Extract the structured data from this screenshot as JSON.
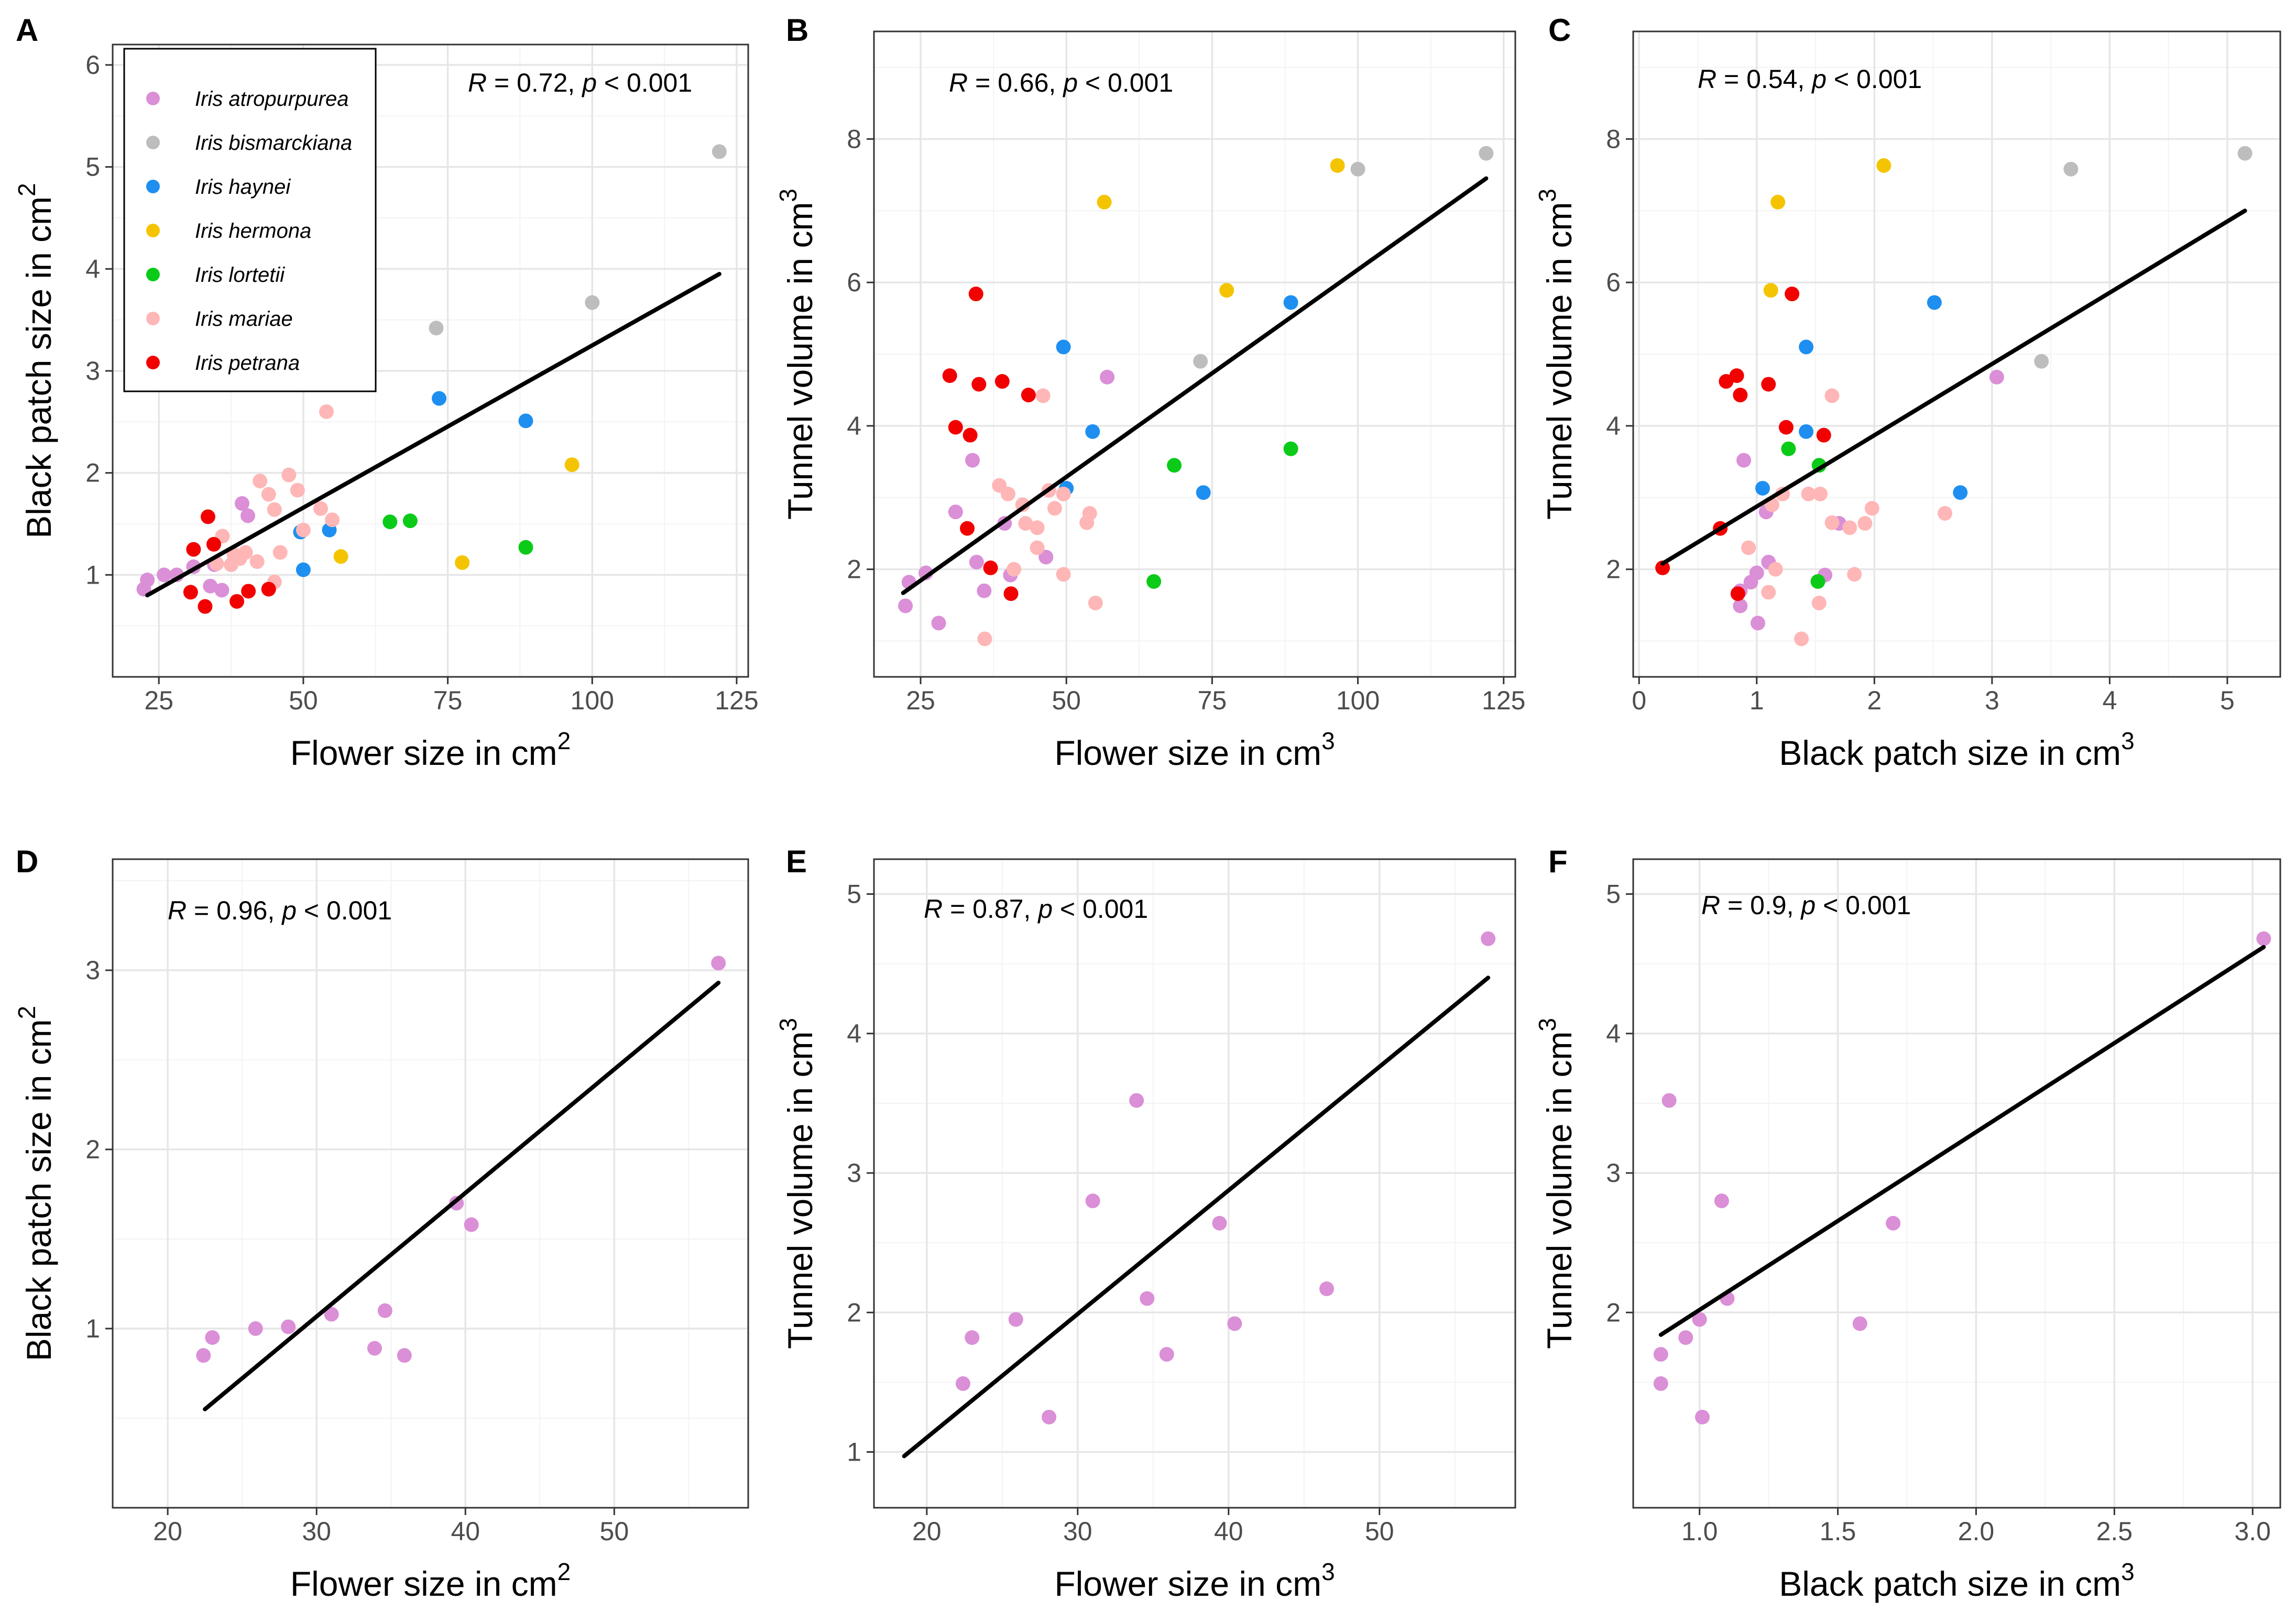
{
  "species": [
    {
      "key": "atro",
      "name": "Iris atropurpurea",
      "color": "#DA8FD7"
    },
    {
      "key": "bism",
      "name": "Iris bismarckiana",
      "color": "#BDBDBD"
    },
    {
      "key": "hayn",
      "name": "Iris haynei",
      "color": "#1E8FF0"
    },
    {
      "key": "herm",
      "name": "Iris hermona",
      "color": "#F5C400"
    },
    {
      "key": "lort",
      "name": "Iris lortetii",
      "color": "#0BCB18"
    },
    {
      "key": "mari",
      "name": "Iris mariae",
      "color": "#FFB6B6"
    },
    {
      "key": "petr",
      "name": "Iris petrana",
      "color": "#F20000"
    }
  ],
  "legend_title": "",
  "chart_data": [
    {
      "panel": "A",
      "type": "scatter",
      "xlabel": "Flower size in cm",
      "ylabel": "Black patch size in cm",
      "exp": "2",
      "xlim": [
        17,
        127
      ],
      "ylim": [
        0,
        6.2
      ],
      "xticks": [
        25,
        50,
        75,
        100,
        125
      ],
      "yticks": [
        1,
        2,
        3,
        4,
        5,
        6
      ],
      "r_text": "R",
      "stat_text": " = 0.72, ",
      "p_text": "p",
      "p_rest": " < 0.001",
      "fit": {
        "x1": 23,
        "y1": 0.8,
        "x2": 122,
        "y2": 3.95
      },
      "legend": true,
      "points": [
        [
          "atro",
          22.4,
          0.86
        ],
        [
          "atro",
          23,
          0.95
        ],
        [
          "atro",
          25.9,
          1.0
        ],
        [
          "atro",
          28.1,
          1.0
        ],
        [
          "atro",
          31,
          1.08
        ],
        [
          "atro",
          33.9,
          0.89
        ],
        [
          "atro",
          34.6,
          1.1
        ],
        [
          "atro",
          35.9,
          0.85
        ],
        [
          "atro",
          39.4,
          1.7
        ],
        [
          "atro",
          40.4,
          1.58
        ],
        [
          "bism",
          73,
          3.42
        ],
        [
          "bism",
          100,
          3.67
        ],
        [
          "bism",
          122,
          5.15
        ],
        [
          "hayn",
          49.5,
          1.42
        ],
        [
          "hayn",
          50,
          1.05
        ],
        [
          "hayn",
          54.5,
          1.44
        ],
        [
          "hayn",
          73.5,
          2.73
        ],
        [
          "hayn",
          88.5,
          2.51
        ],
        [
          "herm",
          56.5,
          1.18
        ],
        [
          "herm",
          77.5,
          1.12
        ],
        [
          "herm",
          96.5,
          2.08
        ],
        [
          "lort",
          65,
          1.52
        ],
        [
          "lort",
          68.5,
          1.53
        ],
        [
          "lort",
          88.5,
          1.27
        ],
        [
          "mari",
          35,
          1.11
        ],
        [
          "mari",
          36,
          1.38
        ],
        [
          "mari",
          37.5,
          1.1
        ],
        [
          "mari",
          38,
          1.2
        ],
        [
          "mari",
          39,
          1.16
        ],
        [
          "mari",
          40,
          1.22
        ],
        [
          "mari",
          42,
          1.13
        ],
        [
          "mari",
          42.5,
          1.92
        ],
        [
          "mari",
          44,
          1.79
        ],
        [
          "mari",
          45,
          0.93
        ],
        [
          "mari",
          45,
          1.64
        ],
        [
          "mari",
          46,
          1.22
        ],
        [
          "mari",
          47.5,
          1.98
        ],
        [
          "mari",
          49,
          1.83
        ],
        [
          "mari",
          50,
          1.44
        ],
        [
          "mari",
          53,
          1.65
        ],
        [
          "mari",
          54,
          2.6
        ],
        [
          "mari",
          55,
          1.54
        ],
        [
          "petr",
          30.5,
          0.83
        ],
        [
          "petr",
          31,
          1.25
        ],
        [
          "petr",
          33,
          0.69
        ],
        [
          "petr",
          33.5,
          1.57
        ],
        [
          "petr",
          34.5,
          1.3
        ],
        [
          "petr",
          38.5,
          0.74
        ],
        [
          "petr",
          40.5,
          0.84
        ],
        [
          "petr",
          44,
          0.86
        ]
      ]
    },
    {
      "panel": "B",
      "type": "scatter",
      "xlabel": "Flower size in cm",
      "ylabel": "Tunnel volume in cm",
      "exp": "3",
      "xlim": [
        17,
        127
      ],
      "ylim": [
        0.5,
        9.5
      ],
      "xticks": [
        25,
        50,
        75,
        100,
        125
      ],
      "yticks": [
        2,
        4,
        6,
        8
      ],
      "r_text": "R",
      "stat_text": " = 0.66, ",
      "p_text": "p",
      "p_rest": " < 0.001",
      "fit": {
        "x1": 22,
        "y1": 1.67,
        "x2": 122,
        "y2": 7.45
      },
      "legend": false,
      "points": [
        [
          "atro",
          22.4,
          1.49
        ],
        [
          "atro",
          23,
          1.82
        ],
        [
          "atro",
          25.9,
          1.95
        ],
        [
          "atro",
          28.1,
          1.25
        ],
        [
          "atro",
          31,
          2.8
        ],
        [
          "atro",
          33.9,
          3.52
        ],
        [
          "atro",
          34.6,
          2.1
        ],
        [
          "atro",
          35.9,
          1.7
        ],
        [
          "atro",
          39.4,
          2.64
        ],
        [
          "atro",
          40.4,
          1.92
        ],
        [
          "atro",
          46.5,
          2.17
        ],
        [
          "atro",
          57,
          4.68
        ],
        [
          "bism",
          73,
          4.9
        ],
        [
          "bism",
          100,
          7.58
        ],
        [
          "bism",
          122,
          7.8
        ],
        [
          "hayn",
          49.5,
          5.1
        ],
        [
          "hayn",
          50,
          3.13
        ],
        [
          "hayn",
          54.5,
          3.92
        ],
        [
          "hayn",
          73.5,
          3.07
        ],
        [
          "hayn",
          88.5,
          5.72
        ],
        [
          "herm",
          56.5,
          7.12
        ],
        [
          "herm",
          77.5,
          5.89
        ],
        [
          "herm",
          96.5,
          7.63
        ],
        [
          "lort",
          65,
          1.83
        ],
        [
          "lort",
          68.5,
          3.45
        ],
        [
          "lort",
          88.5,
          3.68
        ],
        [
          "mari",
          36,
          1.03
        ],
        [
          "mari",
          38.5,
          3.17
        ],
        [
          "mari",
          40,
          3.05
        ],
        [
          "mari",
          41,
          2.0
        ],
        [
          "mari",
          42.5,
          2.9
        ],
        [
          "mari",
          43,
          2.64
        ],
        [
          "mari",
          45,
          2.58
        ],
        [
          "mari",
          45,
          2.3
        ],
        [
          "mari",
          46,
          4.42
        ],
        [
          "mari",
          47,
          3.1
        ],
        [
          "mari",
          48,
          2.85
        ],
        [
          "mari",
          49.5,
          3.05
        ],
        [
          "mari",
          49.5,
          1.93
        ],
        [
          "mari",
          53.5,
          2.65
        ],
        [
          "mari",
          54,
          2.78
        ],
        [
          "mari",
          55,
          1.53
        ],
        [
          "petr",
          30,
          4.7
        ],
        [
          "petr",
          31,
          3.98
        ],
        [
          "petr",
          33,
          2.57
        ],
        [
          "petr",
          33.5,
          3.87
        ],
        [
          "petr",
          34.5,
          5.84
        ],
        [
          "petr",
          35,
          4.58
        ],
        [
          "petr",
          37,
          2.02
        ],
        [
          "petr",
          39,
          4.62
        ],
        [
          "petr",
          40.5,
          1.66
        ],
        [
          "petr",
          43.5,
          4.43
        ]
      ]
    },
    {
      "panel": "C",
      "type": "scatter",
      "xlabel": "Black patch size in cm",
      "ylabel": "Tunnel volume in cm",
      "exp": "3",
      "xlim": [
        -0.05,
        5.45
      ],
      "ylim": [
        0.5,
        9.5
      ],
      "xticks": [
        0,
        1,
        2,
        3,
        4,
        5
      ],
      "yticks": [
        2,
        4,
        6,
        8
      ],
      "r_text": "R",
      "stat_text": " = 0.54, ",
      "p_text": "p",
      "p_rest": " < 0.001",
      "fit": {
        "x1": 0.2,
        "y1": 2.08,
        "x2": 5.15,
        "y2": 7.0
      },
      "legend": false,
      "points": [
        [
          "atro",
          0.86,
          1.49
        ],
        [
          "atro",
          0.86,
          1.7
        ],
        [
          "atro",
          0.89,
          3.52
        ],
        [
          "atro",
          0.95,
          1.82
        ],
        [
          "atro",
          1.0,
          1.95
        ],
        [
          "atro",
          1.01,
          1.25
        ],
        [
          "atro",
          1.08,
          2.8
        ],
        [
          "atro",
          1.1,
          2.1
        ],
        [
          "atro",
          1.58,
          1.92
        ],
        [
          "atro",
          1.7,
          2.64
        ],
        [
          "atro",
          3.04,
          4.68
        ],
        [
          "bism",
          3.42,
          4.9
        ],
        [
          "bism",
          3.67,
          7.58
        ],
        [
          "bism",
          5.15,
          7.8
        ],
        [
          "hayn",
          1.05,
          3.13
        ],
        [
          "hayn",
          1.42,
          5.1
        ],
        [
          "hayn",
          1.42,
          3.92
        ],
        [
          "hayn",
          2.51,
          5.72
        ],
        [
          "hayn",
          2.73,
          3.07
        ],
        [
          "herm",
          1.12,
          5.89
        ],
        [
          "herm",
          1.18,
          7.12
        ],
        [
          "herm",
          2.08,
          7.63
        ],
        [
          "lort",
          1.27,
          3.68
        ],
        [
          "lort",
          1.52,
          1.83
        ],
        [
          "lort",
          1.53,
          3.45
        ],
        [
          "mari",
          0.93,
          2.3
        ],
        [
          "mari",
          1.1,
          1.68
        ],
        [
          "mari",
          1.13,
          2.9
        ],
        [
          "mari",
          1.16,
          2.0
        ],
        [
          "mari",
          1.22,
          3.05
        ],
        [
          "mari",
          1.38,
          1.03
        ],
        [
          "mari",
          1.44,
          3.05
        ],
        [
          "mari",
          1.53,
          1.53
        ],
        [
          "mari",
          1.54,
          3.05
        ],
        [
          "mari",
          1.64,
          4.42
        ],
        [
          "mari",
          1.64,
          2.65
        ],
        [
          "mari",
          1.79,
          2.58
        ],
        [
          "mari",
          1.83,
          1.93
        ],
        [
          "mari",
          1.92,
          2.64
        ],
        [
          "mari",
          1.98,
          2.85
        ],
        [
          "mari",
          2.6,
          2.78
        ],
        [
          "petr",
          0.2,
          2.02
        ],
        [
          "petr",
          0.69,
          2.57
        ],
        [
          "petr",
          0.74,
          4.62
        ],
        [
          "petr",
          0.83,
          4.7
        ],
        [
          "petr",
          0.84,
          1.66
        ],
        [
          "petr",
          0.86,
          4.43
        ],
        [
          "petr",
          1.25,
          3.98
        ],
        [
          "petr",
          1.3,
          5.84
        ],
        [
          "petr",
          1.57,
          3.87
        ],
        [
          "petr",
          1.1,
          4.58
        ]
      ]
    },
    {
      "panel": "D",
      "type": "scatter",
      "xlabel": "Flower size in cm",
      "ylabel": "Black patch size in cm",
      "exp": "2",
      "xlim": [
        16.3,
        59
      ],
      "ylim": [
        0,
        3.62
      ],
      "xticks": [
        20,
        30,
        40,
        50
      ],
      "yticks": [
        1,
        2,
        3
      ],
      "r_text": "R",
      "stat_text": " = 0.96, ",
      "p_text": "p",
      "p_rest": " < 0.001",
      "fit": {
        "x1": 22.5,
        "y1": 0.55,
        "x2": 57,
        "y2": 2.93
      },
      "legend": false,
      "points": [
        [
          "atro",
          22.4,
          0.85
        ],
        [
          "atro",
          23,
          0.95
        ],
        [
          "atro",
          25.9,
          1.0
        ],
        [
          "atro",
          28.1,
          1.01
        ],
        [
          "atro",
          31,
          1.08
        ],
        [
          "atro",
          33.9,
          0.89
        ],
        [
          "atro",
          34.6,
          1.1
        ],
        [
          "atro",
          35.9,
          0.85
        ],
        [
          "atro",
          39.4,
          1.7
        ],
        [
          "atro",
          40.4,
          1.58
        ],
        [
          "atro",
          57,
          3.04
        ]
      ]
    },
    {
      "panel": "E",
      "type": "scatter",
      "xlabel": "Flower size in cm",
      "ylabel": "Tunnel volume in cm",
      "exp": "3",
      "xlim": [
        16.5,
        59
      ],
      "ylim": [
        0.6,
        5.25
      ],
      "xticks": [
        20,
        30,
        40,
        50
      ],
      "yticks": [
        1,
        2,
        3,
        4,
        5
      ],
      "r_text": "R",
      "stat_text": " = 0.87, ",
      "p_text": "p",
      "p_rest": " < 0.001",
      "fit": {
        "x1": 18.5,
        "y1": 0.97,
        "x2": 57.2,
        "y2": 4.4
      },
      "legend": false,
      "points": [
        [
          "atro",
          22.4,
          1.49
        ],
        [
          "atro",
          23,
          1.82
        ],
        [
          "atro",
          25.9,
          1.95
        ],
        [
          "atro",
          28.1,
          1.25
        ],
        [
          "atro",
          31,
          2.8
        ],
        [
          "atro",
          33.9,
          3.52
        ],
        [
          "atro",
          34.6,
          2.1
        ],
        [
          "atro",
          35.9,
          1.7
        ],
        [
          "atro",
          39.4,
          2.64
        ],
        [
          "atro",
          40.4,
          1.92
        ],
        [
          "atro",
          46.5,
          2.17
        ],
        [
          "atro",
          57.2,
          4.68
        ]
      ]
    },
    {
      "panel": "F",
      "type": "scatter",
      "xlabel": "Black patch size in cm",
      "ylabel": "Tunnel volume in cm",
      "exp": "3",
      "xlim": [
        0.76,
        3.1
      ],
      "ylim": [
        0.6,
        5.25
      ],
      "xticks": [
        1.0,
        1.5,
        2.0,
        2.5,
        3.0
      ],
      "yticks": [
        2,
        3,
        4,
        5
      ],
      "r_text": "R",
      "stat_text": " = 0.9, ",
      "p_text": "p",
      "p_rest": " < 0.001",
      "fit": {
        "x1": 0.86,
        "y1": 1.84,
        "x2": 3.04,
        "y2": 4.62
      },
      "legend": false,
      "points": [
        [
          "atro",
          0.86,
          1.49
        ],
        [
          "atro",
          0.86,
          1.7
        ],
        [
          "atro",
          0.89,
          3.52
        ],
        [
          "atro",
          0.95,
          1.82
        ],
        [
          "atro",
          1.0,
          1.95
        ],
        [
          "atro",
          1.01,
          1.25
        ],
        [
          "atro",
          1.08,
          2.8
        ],
        [
          "atro",
          1.1,
          2.1
        ],
        [
          "atro",
          1.58,
          1.92
        ],
        [
          "atro",
          1.7,
          2.64
        ],
        [
          "atro",
          3.04,
          4.68
        ]
      ]
    }
  ]
}
